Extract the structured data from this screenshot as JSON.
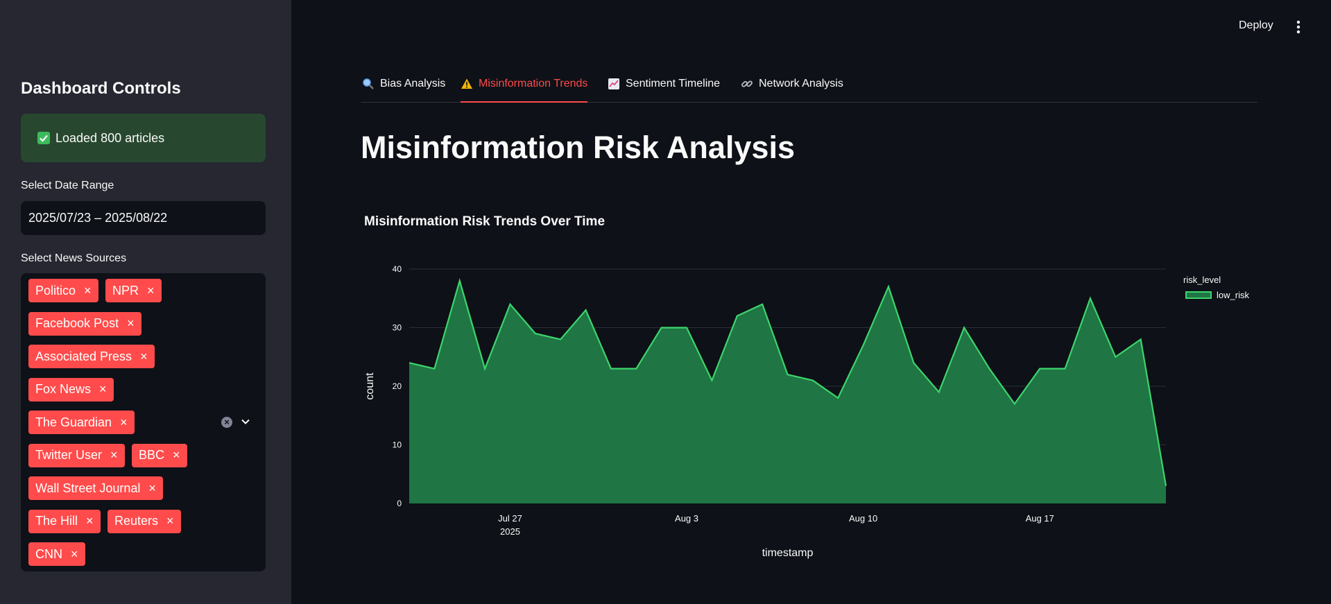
{
  "sidebar": {
    "title": "Dashboard Controls",
    "status_message": "Loaded 800 articles",
    "date_range_label": "Select Date Range",
    "date_range_value": "2025/07/23 – 2025/08/22",
    "sources_label": "Select News Sources",
    "selected_sources": [
      "Politico",
      "NPR",
      "Facebook Post",
      "Associated Press",
      "Fox News",
      "The Guardian",
      "Twitter User",
      "BBC",
      "Wall Street Journal",
      "The Hill",
      "Reuters",
      "CNN"
    ],
    "remove_glyph": "×"
  },
  "header": {
    "deploy_label": "Deploy",
    "menu_icon": "kebab-icon"
  },
  "tabs": [
    {
      "label": "Bias Analysis",
      "icon": "magnifier-icon",
      "active": false
    },
    {
      "label": "Misinformation Trends",
      "icon": "warning-icon",
      "active": true
    },
    {
      "label": "Sentiment Timeline",
      "icon": "chart-increasing-icon",
      "active": false
    },
    {
      "label": "Network Analysis",
      "icon": "link-icon",
      "active": false
    }
  ],
  "main": {
    "page_title": "Misinformation Risk Analysis"
  },
  "colors": {
    "accent": "#ff4b4b",
    "success": "#21c354",
    "series_line": "#3dd56d",
    "series_fill": "#1f7544"
  },
  "chart_data": {
    "type": "area",
    "title": "Misinformation Risk Trends Over Time",
    "xlabel": "timestamp",
    "ylabel": "count",
    "legend_title": "risk_level",
    "legend_position": "top-right",
    "grid": true,
    "ylim": [
      0,
      40
    ],
    "y_ticks": [
      0,
      10,
      20,
      30,
      40
    ],
    "x_ticks": [
      {
        "date": "2025-07-27",
        "label": "Jul 27",
        "sublabel": "2025"
      },
      {
        "date": "2025-08-03",
        "label": "Aug 3",
        "sublabel": ""
      },
      {
        "date": "2025-08-10",
        "label": "Aug 10",
        "sublabel": ""
      },
      {
        "date": "2025-08-17",
        "label": "Aug 17",
        "sublabel": ""
      }
    ],
    "series": [
      {
        "name": "low_risk",
        "x": [
          "2025-07-23",
          "2025-07-24",
          "2025-07-25",
          "2025-07-26",
          "2025-07-27",
          "2025-07-28",
          "2025-07-29",
          "2025-07-30",
          "2025-07-31",
          "2025-08-01",
          "2025-08-02",
          "2025-08-03",
          "2025-08-04",
          "2025-08-05",
          "2025-08-06",
          "2025-08-07",
          "2025-08-08",
          "2025-08-09",
          "2025-08-10",
          "2025-08-11",
          "2025-08-12",
          "2025-08-13",
          "2025-08-14",
          "2025-08-15",
          "2025-08-16",
          "2025-08-17",
          "2025-08-18",
          "2025-08-19",
          "2025-08-20",
          "2025-08-21",
          "2025-08-22"
        ],
        "values": [
          24,
          23,
          38,
          23,
          34,
          29,
          28,
          33,
          23,
          23,
          30,
          30,
          21,
          32,
          34,
          22,
          21,
          18,
          27,
          37,
          24,
          19,
          30,
          23,
          17,
          23,
          23,
          35,
          25,
          28,
          3
        ]
      }
    ]
  }
}
